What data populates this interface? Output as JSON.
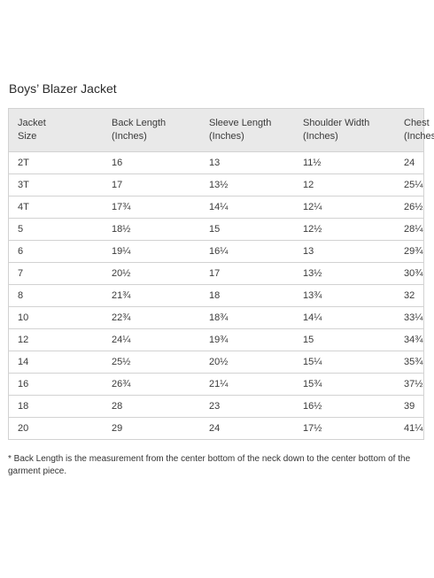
{
  "title": "Boys’ Blazer Jacket",
  "table": {
    "headers": [
      [
        "Jacket",
        "Size"
      ],
      [
        "Back Length",
        "(Inches)"
      ],
      [
        "Sleeve Length",
        "(Inches)"
      ],
      [
        "Shoulder Width",
        "(Inches)"
      ],
      [
        "Chest",
        "(Inches)"
      ]
    ],
    "rows": [
      [
        "2T",
        "16",
        "13",
        "11½",
        "24"
      ],
      [
        "3T",
        "17",
        "13½",
        "12",
        "25¼"
      ],
      [
        "4T",
        "17¾",
        "14¼",
        "12¼",
        "26½"
      ],
      [
        "5",
        "18½",
        "15",
        "12½",
        "28¼"
      ],
      [
        "6",
        "19¼",
        "16¼",
        "13",
        "29¾"
      ],
      [
        "7",
        "20½",
        "17",
        "13½",
        "30¾"
      ],
      [
        "8",
        "21¾",
        "18",
        "13¾",
        "32"
      ],
      [
        "10",
        "22¾",
        "18¾",
        "14¼",
        "33¼"
      ],
      [
        "12",
        "24¼",
        "19¾",
        "15",
        "34¾"
      ],
      [
        "14",
        "25½",
        "20½",
        "15¼",
        "35¾"
      ],
      [
        "16",
        "26¾",
        "21¼",
        "15¾",
        "37½"
      ],
      [
        "18",
        "28",
        "23",
        "16½",
        "39"
      ],
      [
        "20",
        "29",
        "24",
        "17½",
        "41¼"
      ]
    ]
  },
  "footnote": "* Back Length is the measurement from the center bottom of the neck down to the center bottom of the garment piece."
}
